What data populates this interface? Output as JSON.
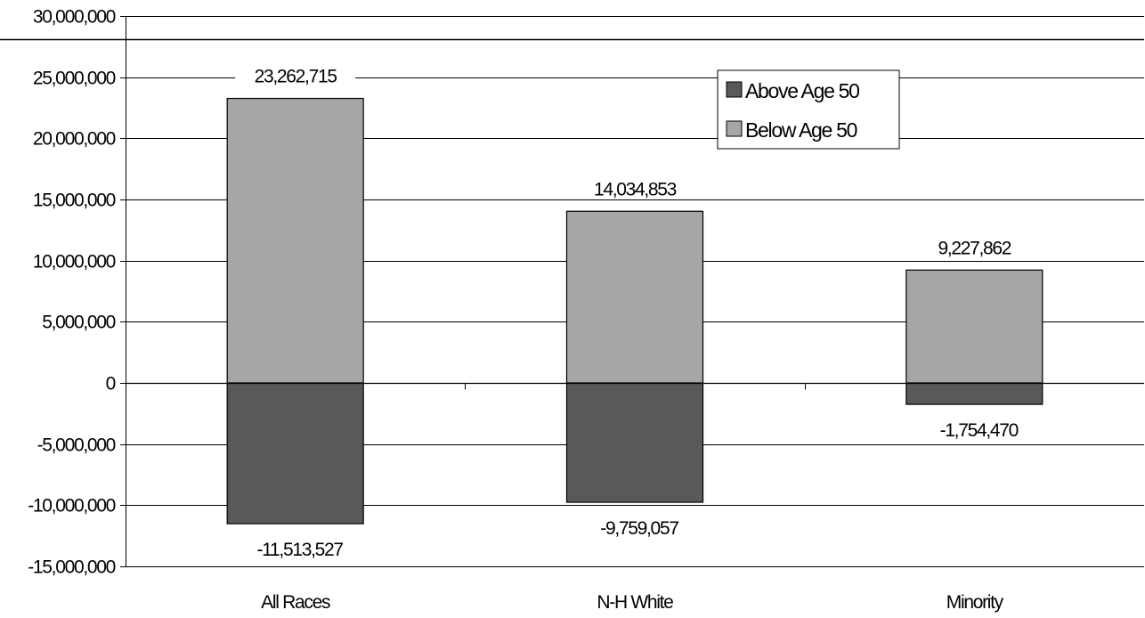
{
  "chart_data": {
    "type": "bar",
    "stacked": true,
    "categories": [
      "All Races",
      "N-H White",
      "Minority"
    ],
    "series": [
      {
        "name": "Above Age 50",
        "color": "#595959",
        "values": [
          -11513527,
          -9759057,
          -1754470
        ],
        "labels": [
          "-11,513,527",
          "-9,759,057",
          "-1,754,470"
        ]
      },
      {
        "name": "Below Age 50",
        "color": "#a6a6a6",
        "values": [
          23262715,
          14034853,
          9227862
        ],
        "labels": [
          "23,262,715",
          "14,034,853",
          "9,227,862"
        ]
      }
    ],
    "ylim": [
      -15000000,
      30000000
    ],
    "ytick_values": [
      30000000,
      25000000,
      20000000,
      15000000,
      10000000,
      5000000,
      0,
      -5000000,
      -10000000,
      -15000000
    ],
    "ytick_labels": [
      "30,000,000",
      "25,000,000",
      "20,000,000",
      "15,000,000",
      "10,000,000",
      "5,000,000",
      "0",
      "-5,000,000",
      "-10,000,000",
      "-15,000,000"
    ],
    "grid": true,
    "legend_position": "top-right",
    "title": "",
    "xlabel": "",
    "ylabel": ""
  }
}
